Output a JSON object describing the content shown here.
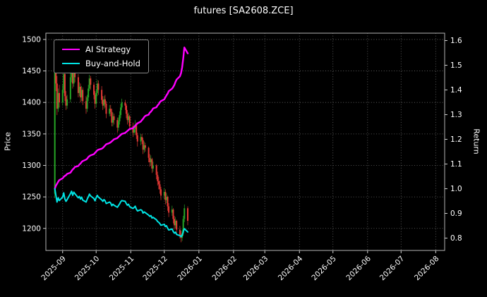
{
  "chart_data": {
    "type": "candlestick+line",
    "title": "futures [SA2608.ZCE]",
    "background": "#000000",
    "grid": {
      "color": "#6a6a6a",
      "style": "dotted"
    },
    "legend_position": "upper-left",
    "x_range": [
      "2025-08-17",
      "2026-08-09"
    ],
    "x_ticks": [
      {
        "label": "2025-09",
        "date": "2025-09-01"
      },
      {
        "label": "2025-10",
        "date": "2025-10-01"
      },
      {
        "label": "2025-11",
        "date": "2025-11-01"
      },
      {
        "label": "2025-12",
        "date": "2025-12-01"
      },
      {
        "label": "2026-01",
        "date": "2026-01-01"
      },
      {
        "label": "2026-02",
        "date": "2026-02-01"
      },
      {
        "label": "2026-03",
        "date": "2026-03-01"
      },
      {
        "label": "2026-04",
        "date": "2026-04-01"
      },
      {
        "label": "2026-05",
        "date": "2026-05-01"
      },
      {
        "label": "2026-06",
        "date": "2026-06-01"
      },
      {
        "label": "2026-07",
        "date": "2026-07-01"
      },
      {
        "label": "2026-08",
        "date": "2026-08-01"
      }
    ],
    "left_axis": {
      "label": "Price",
      "ticks": [
        1200,
        1250,
        1300,
        1350,
        1400,
        1450,
        1500
      ],
      "range": [
        1165,
        1510
      ]
    },
    "right_axis": {
      "label": "Return",
      "ticks": [
        0.8,
        0.9,
        1.0,
        1.1,
        1.2,
        1.3,
        1.4,
        1.5,
        1.6
      ],
      "range": [
        0.75,
        1.63
      ]
    },
    "candles": {
      "up_color": "#26a626",
      "down_color": "#e53935",
      "dates": [
        "2025-08-25",
        "2025-08-26",
        "2025-08-27",
        "2025-08-28",
        "2025-08-29",
        "2025-09-01",
        "2025-09-02",
        "2025-09-03",
        "2025-09-04",
        "2025-09-05",
        "2025-09-08",
        "2025-09-09",
        "2025-09-10",
        "2025-09-11",
        "2025-09-12",
        "2025-09-15",
        "2025-09-16",
        "2025-09-17",
        "2025-09-18",
        "2025-09-19",
        "2025-09-22",
        "2025-09-23",
        "2025-09-24",
        "2025-09-25",
        "2025-09-26",
        "2025-09-29",
        "2025-09-30",
        "2025-10-01",
        "2025-10-02",
        "2025-10-03",
        "2025-10-06",
        "2025-10-07",
        "2025-10-08",
        "2025-10-09",
        "2025-10-10",
        "2025-10-13",
        "2025-10-14",
        "2025-10-15",
        "2025-10-16",
        "2025-10-17",
        "2025-10-20",
        "2025-10-21",
        "2025-10-22",
        "2025-10-23",
        "2025-10-24",
        "2025-10-27",
        "2025-10-28",
        "2025-10-29",
        "2025-10-30",
        "2025-10-31",
        "2025-11-03",
        "2025-11-04",
        "2025-11-05",
        "2025-11-06",
        "2025-11-07",
        "2025-11-10",
        "2025-11-11",
        "2025-11-12",
        "2025-11-13",
        "2025-11-14",
        "2025-11-17",
        "2025-11-18",
        "2025-11-19",
        "2025-11-20",
        "2025-11-21",
        "2025-11-24",
        "2025-11-25",
        "2025-11-26",
        "2025-11-27",
        "2025-11-28",
        "2025-12-01",
        "2025-12-02",
        "2025-12-03",
        "2025-12-04",
        "2025-12-05",
        "2025-12-08",
        "2025-12-09",
        "2025-12-10",
        "2025-12-11",
        "2025-12-12",
        "2025-12-15",
        "2025-12-16",
        "2025-12-17",
        "2025-12-18",
        "2025-12-19",
        "2025-12-22"
      ],
      "open": [
        1255,
        1470,
        1430,
        1390,
        1415,
        1400,
        1420,
        1445,
        1410,
        1395,
        1405,
        1440,
        1455,
        1430,
        1450,
        1440,
        1415,
        1425,
        1408,
        1420,
        1402,
        1390,
        1408,
        1422,
        1438,
        1428,
        1412,
        1398,
        1415,
        1430,
        1420,
        1404,
        1395,
        1405,
        1398,
        1382,
        1390,
        1385,
        1368,
        1378,
        1372,
        1360,
        1370,
        1380,
        1392,
        1400,
        1395,
        1382,
        1372,
        1378,
        1362,
        1352,
        1358,
        1365,
        1348,
        1338,
        1345,
        1340,
        1325,
        1332,
        1328,
        1312,
        1305,
        1310,
        1295,
        1300,
        1285,
        1275,
        1270,
        1262,
        1252,
        1258,
        1245,
        1250,
        1235,
        1225,
        1230,
        1215,
        1205,
        1212,
        1198,
        1190,
        1185,
        1192,
        1215,
        1232
      ],
      "high": [
        1490,
        1478,
        1442,
        1422,
        1428,
        1428,
        1452,
        1455,
        1418,
        1412,
        1448,
        1462,
        1460,
        1458,
        1456,
        1445,
        1432,
        1430,
        1426,
        1424,
        1410,
        1412,
        1428,
        1444,
        1442,
        1432,
        1418,
        1420,
        1436,
        1435,
        1426,
        1410,
        1410,
        1412,
        1402,
        1396,
        1396,
        1390,
        1384,
        1382,
        1376,
        1376,
        1386,
        1398,
        1406,
        1404,
        1398,
        1388,
        1384,
        1380,
        1368,
        1364,
        1372,
        1368,
        1352,
        1350,
        1350,
        1344,
        1338,
        1336,
        1330,
        1318,
        1316,
        1312,
        1306,
        1302,
        1290,
        1282,
        1276,
        1266,
        1264,
        1262,
        1256,
        1252,
        1240,
        1236,
        1232,
        1220,
        1218,
        1214,
        1204,
        1196,
        1198,
        1220,
        1238,
        1235
      ],
      "low": [
        1248,
        1418,
        1380,
        1385,
        1392,
        1395,
        1415,
        1402,
        1388,
        1390,
        1400,
        1432,
        1422,
        1425,
        1432,
        1408,
        1410,
        1400,
        1402,
        1396,
        1382,
        1385,
        1402,
        1418,
        1420,
        1405,
        1390,
        1392,
        1410,
        1412,
        1398,
        1388,
        1390,
        1392,
        1375,
        1378,
        1378,
        1362,
        1362,
        1365,
        1352,
        1355,
        1365,
        1375,
        1388,
        1388,
        1375,
        1365,
        1368,
        1356,
        1345,
        1348,
        1352,
        1342,
        1330,
        1332,
        1334,
        1318,
        1320,
        1322,
        1305,
        1298,
        1300,
        1288,
        1290,
        1278,
        1268,
        1262,
        1255,
        1245,
        1246,
        1238,
        1240,
        1228,
        1218,
        1220,
        1208,
        1198,
        1200,
        1192,
        1184,
        1178,
        1180,
        1188,
        1210,
        1205
      ],
      "close": [
        1470,
        1430,
        1390,
        1415,
        1400,
        1420,
        1445,
        1410,
        1395,
        1405,
        1440,
        1455,
        1430,
        1450,
        1440,
        1415,
        1425,
        1408,
        1420,
        1402,
        1390,
        1408,
        1422,
        1438,
        1428,
        1412,
        1398,
        1415,
        1430,
        1420,
        1404,
        1395,
        1405,
        1398,
        1382,
        1390,
        1385,
        1368,
        1378,
        1372,
        1360,
        1370,
        1380,
        1392,
        1400,
        1395,
        1382,
        1372,
        1378,
        1362,
        1352,
        1358,
        1365,
        1348,
        1338,
        1345,
        1340,
        1325,
        1332,
        1328,
        1312,
        1305,
        1310,
        1295,
        1300,
        1285,
        1275,
        1270,
        1262,
        1252,
        1258,
        1245,
        1250,
        1235,
        1225,
        1230,
        1215,
        1205,
        1212,
        1198,
        1190,
        1185,
        1192,
        1215,
        1232,
        1212
      ]
    },
    "series": [
      {
        "name": "AI Strategy",
        "axis": "right",
        "color": "#ff00ff",
        "width": 2.4,
        "values": [
          1.0,
          1.012,
          1.02,
          1.028,
          1.035,
          1.042,
          1.048,
          1.052,
          1.055,
          1.06,
          1.065,
          1.072,
          1.078,
          1.082,
          1.088,
          1.092,
          1.098,
          1.102,
          1.108,
          1.112,
          1.118,
          1.122,
          1.128,
          1.132,
          1.135,
          1.14,
          1.145,
          1.15,
          1.155,
          1.158,
          1.162,
          1.165,
          1.17,
          1.175,
          1.18,
          1.185,
          1.188,
          1.192,
          1.196,
          1.2,
          1.205,
          1.21,
          1.214,
          1.218,
          1.222,
          1.226,
          1.23,
          1.234,
          1.238,
          1.242,
          1.245,
          1.25,
          1.255,
          1.26,
          1.265,
          1.272,
          1.278,
          1.283,
          1.29,
          1.295,
          1.3,
          1.308,
          1.312,
          1.318,
          1.325,
          1.33,
          1.338,
          1.342,
          1.35,
          1.355,
          1.362,
          1.37,
          1.378,
          1.385,
          1.395,
          1.405,
          1.412,
          1.42,
          1.432,
          1.442,
          1.455,
          1.468,
          1.492,
          1.53,
          1.572,
          1.548
        ]
      },
      {
        "name": "Buy-and-Hold",
        "axis": "right",
        "color": "#00e5e5",
        "width": 2.0,
        "values": [
          1.0,
          0.973,
          0.946,
          0.963,
          0.952,
          0.966,
          0.983,
          0.959,
          0.949,
          0.956,
          0.98,
          0.99,
          0.973,
          0.986,
          0.98,
          0.963,
          0.969,
          0.958,
          0.966,
          0.954,
          0.946,
          0.958,
          0.967,
          0.978,
          0.971,
          0.96,
          0.951,
          0.963,
          0.973,
          0.966,
          0.955,
          0.949,
          0.956,
          0.951,
          0.94,
          0.946,
          0.942,
          0.931,
          0.937,
          0.933,
          0.925,
          0.932,
          0.939,
          0.947,
          0.952,
          0.949,
          0.94,
          0.933,
          0.937,
          0.927,
          0.92,
          0.924,
          0.929,
          0.917,
          0.91,
          0.915,
          0.912,
          0.901,
          0.906,
          0.903,
          0.893,
          0.888,
          0.891,
          0.881,
          0.884,
          0.874,
          0.867,
          0.864,
          0.859,
          0.852,
          0.856,
          0.847,
          0.85,
          0.84,
          0.833,
          0.837,
          0.827,
          0.82,
          0.824,
          0.815,
          0.81,
          0.806,
          0.811,
          0.827,
          0.838,
          0.825
        ]
      }
    ]
  }
}
